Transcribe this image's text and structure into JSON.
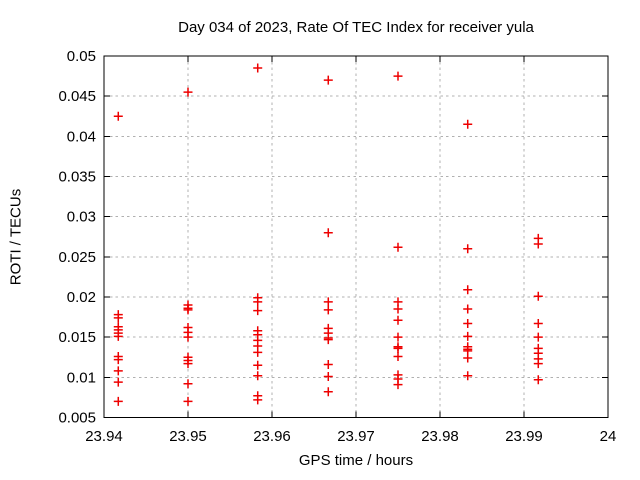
{
  "window": {
    "background": "#ffffff"
  },
  "chart_data": {
    "type": "scatter",
    "title": "Day 034 of 2023, Rate Of TEC Index for receiver yula",
    "xlabel": "GPS time / hours",
    "ylabel": "ROTI / TECUs",
    "xlim": [
      23.94,
      24
    ],
    "ylim": [
      0.005,
      0.05
    ],
    "x_ticks": [
      23.94,
      23.95,
      23.96,
      23.97,
      23.98,
      23.99,
      24
    ],
    "x_tick_labels": [
      "23.94",
      "23.95",
      "23.96",
      "23.97",
      "23.98",
      "23.99",
      "24"
    ],
    "y_ticks": [
      0.005,
      0.01,
      0.015,
      0.02,
      0.025,
      0.03,
      0.035,
      0.04,
      0.045,
      0.05
    ],
    "y_tick_labels": [
      "0.005",
      "0.01",
      "0.015",
      "0.02",
      "0.025",
      "0.03",
      "0.035",
      "0.04",
      "0.045",
      "0.05"
    ],
    "grid": true,
    "legend": "none",
    "marker": "plus",
    "colors": {
      "marker": "#ee0000",
      "grid": "#b0b0b0",
      "axis": "#000000",
      "text": "#000000"
    },
    "series": [
      {
        "name": "ROTI",
        "points": [
          [
            23.9417,
            0.0425
          ],
          [
            23.9417,
            0.0178
          ],
          [
            23.9417,
            0.0174
          ],
          [
            23.9417,
            0.0163
          ],
          [
            23.9417,
            0.0159
          ],
          [
            23.9417,
            0.0155
          ],
          [
            23.9417,
            0.0151
          ],
          [
            23.9417,
            0.0126
          ],
          [
            23.9417,
            0.0122
          ],
          [
            23.9417,
            0.0108
          ],
          [
            23.9417,
            0.0094
          ],
          [
            23.9417,
            0.007
          ],
          [
            23.95,
            0.0455
          ],
          [
            23.95,
            0.019
          ],
          [
            23.95,
            0.0186
          ],
          [
            23.95,
            0.0184
          ],
          [
            23.95,
            0.0162
          ],
          [
            23.95,
            0.0156
          ],
          [
            23.95,
            0.015
          ],
          [
            23.95,
            0.0125
          ],
          [
            23.95,
            0.0121
          ],
          [
            23.95,
            0.0117
          ],
          [
            23.95,
            0.0092
          ],
          [
            23.95,
            0.007
          ],
          [
            23.9583,
            0.0485
          ],
          [
            23.9583,
            0.0199
          ],
          [
            23.9583,
            0.0194
          ],
          [
            23.9583,
            0.0183
          ],
          [
            23.9583,
            0.0158
          ],
          [
            23.9583,
            0.0153
          ],
          [
            23.9583,
            0.0146
          ],
          [
            23.9583,
            0.0139
          ],
          [
            23.9583,
            0.0131
          ],
          [
            23.9583,
            0.0115
          ],
          [
            23.9583,
            0.0102
          ],
          [
            23.9583,
            0.0077
          ],
          [
            23.9583,
            0.0072
          ],
          [
            23.9667,
            0.047
          ],
          [
            23.9667,
            0.028
          ],
          [
            23.9667,
            0.0194
          ],
          [
            23.9667,
            0.0184
          ],
          [
            23.9667,
            0.0161
          ],
          [
            23.9667,
            0.0155
          ],
          [
            23.9667,
            0.0149
          ],
          [
            23.9667,
            0.0147
          ],
          [
            23.9667,
            0.0116
          ],
          [
            23.9667,
            0.0101
          ],
          [
            23.9667,
            0.0082
          ],
          [
            23.975,
            0.0475
          ],
          [
            23.975,
            0.0262
          ],
          [
            23.975,
            0.0194
          ],
          [
            23.975,
            0.0185
          ],
          [
            23.975,
            0.0171
          ],
          [
            23.975,
            0.015
          ],
          [
            23.975,
            0.0138
          ],
          [
            23.975,
            0.0136
          ],
          [
            23.975,
            0.0126
          ],
          [
            23.975,
            0.0103
          ],
          [
            23.975,
            0.0098
          ],
          [
            23.975,
            0.0091
          ],
          [
            23.9833,
            0.0415
          ],
          [
            23.9833,
            0.026
          ],
          [
            23.9833,
            0.0209
          ],
          [
            23.9833,
            0.0185
          ],
          [
            23.9833,
            0.0167
          ],
          [
            23.9833,
            0.0151
          ],
          [
            23.9833,
            0.0138
          ],
          [
            23.9833,
            0.0135
          ],
          [
            23.9833,
            0.0133
          ],
          [
            23.9833,
            0.0124
          ],
          [
            23.9833,
            0.0102
          ],
          [
            23.9917,
            0.0273
          ],
          [
            23.9917,
            0.0266
          ],
          [
            23.9917,
            0.0201
          ],
          [
            23.9917,
            0.0167
          ],
          [
            23.9917,
            0.015
          ],
          [
            23.9917,
            0.0136
          ],
          [
            23.9917,
            0.013
          ],
          [
            23.9917,
            0.0123
          ],
          [
            23.9917,
            0.0117
          ],
          [
            23.9917,
            0.0097
          ]
        ]
      }
    ]
  }
}
